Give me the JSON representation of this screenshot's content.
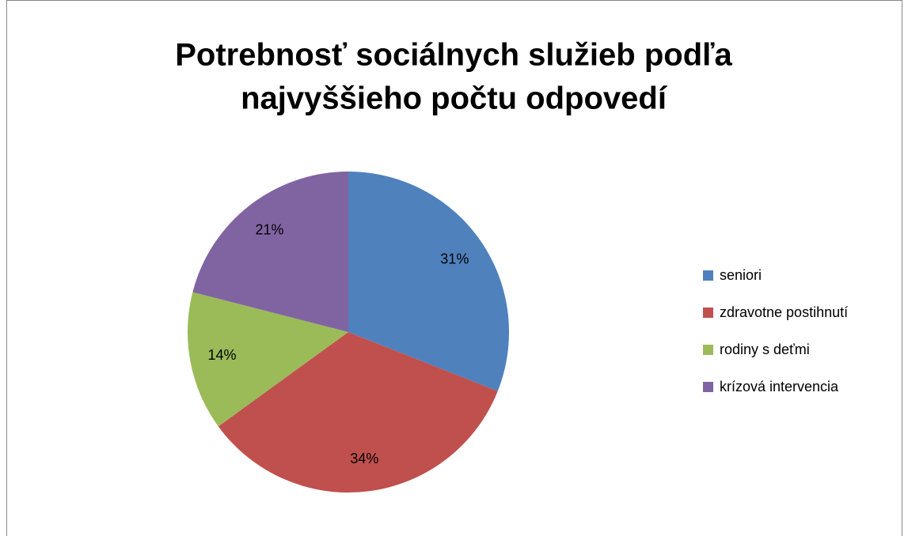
{
  "chart_data": {
    "type": "pie",
    "title": [
      "Potrebnosť sociálnych služieb podľa",
      "najvyššieho počtu odpovedí"
    ],
    "categories": [
      "seniori",
      "zdravotne postihnutí",
      "rodiny s deťmi",
      "krízová intervencia"
    ],
    "values": [
      31,
      34,
      14,
      21
    ],
    "value_labels": [
      "31%",
      "34%",
      "14%",
      "21%"
    ],
    "colors": [
      "#4f81bd",
      "#c0504d",
      "#9bbb59",
      "#8064a2"
    ],
    "legend": "right"
  }
}
